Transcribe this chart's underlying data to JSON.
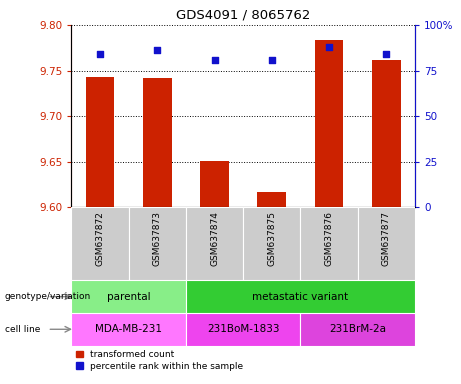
{
  "title": "GDS4091 / 8065762",
  "samples": [
    "GSM637872",
    "GSM637873",
    "GSM637874",
    "GSM637875",
    "GSM637876",
    "GSM637877"
  ],
  "bar_values": [
    9.743,
    9.742,
    9.651,
    9.617,
    9.783,
    9.762
  ],
  "percentile_values": [
    84,
    86,
    81,
    81,
    88,
    84
  ],
  "ylim_left": [
    9.6,
    9.8
  ],
  "ylim_right": [
    0,
    100
  ],
  "yticks_left": [
    9.6,
    9.65,
    9.7,
    9.75,
    9.8
  ],
  "yticks_right": [
    0,
    25,
    50,
    75,
    100
  ],
  "ytick_labels_right": [
    "0",
    "25",
    "50",
    "75",
    "100%"
  ],
  "bar_color": "#cc2200",
  "dot_color": "#1111cc",
  "grid_color": "#000000",
  "sample_box_color": "#cccccc",
  "genotype_groups": [
    {
      "label": "parental",
      "start": 0,
      "end": 2,
      "color": "#88ee88"
    },
    {
      "label": "metastatic variant",
      "start": 2,
      "end": 6,
      "color": "#33cc33"
    }
  ],
  "cell_line_groups": [
    {
      "label": "MDA-MB-231",
      "start": 0,
      "end": 2,
      "color": "#ff77ff"
    },
    {
      "label": "231BoM-1833",
      "start": 2,
      "end": 4,
      "color": "#ee44ee"
    },
    {
      "label": "231BrM-2a",
      "start": 4,
      "end": 6,
      "color": "#dd44dd"
    }
  ],
  "legend_bar_label": "transformed count",
  "legend_dot_label": "percentile rank within the sample",
  "left_tick_color": "#cc2200",
  "right_tick_color": "#1111cc",
  "left_spine_color": "#cc2200",
  "right_spine_color": "#1111cc"
}
